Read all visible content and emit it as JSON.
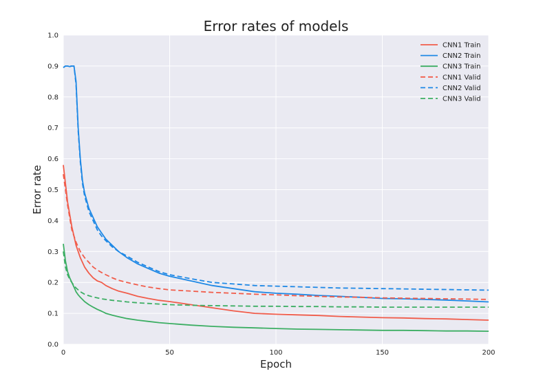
{
  "chart_data": {
    "type": "line",
    "title": "Error rates of models",
    "xlabel": "Epoch",
    "ylabel": "Error rate",
    "xlim": [
      0,
      200
    ],
    "ylim": [
      0.0,
      1.0
    ],
    "xticks": [
      0,
      50,
      100,
      150,
      200
    ],
    "yticks": [
      0.0,
      0.1,
      0.2,
      0.3,
      0.4,
      0.5,
      0.6,
      0.7,
      0.8,
      0.9,
      1.0
    ],
    "xtick_labels": [
      "0",
      "50",
      "100",
      "150",
      "200"
    ],
    "ytick_labels": [
      "0.0",
      "0.1",
      "0.2",
      "0.3",
      "0.4",
      "0.5",
      "0.6",
      "0.7",
      "0.8",
      "0.9",
      "1.0"
    ],
    "grid": true,
    "legend_position": "top-right",
    "background": "#eaeaf2",
    "series": [
      {
        "name": "CNN1 Train",
        "color": "#f15c4a",
        "style": "solid",
        "x": [
          0,
          1,
          2,
          3,
          4,
          5,
          6,
          7,
          8,
          9,
          10,
          12,
          14,
          16,
          18,
          20,
          23,
          26,
          30,
          35,
          40,
          45,
          50,
          60,
          70,
          80,
          90,
          100,
          110,
          120,
          130,
          140,
          150,
          160,
          170,
          180,
          190,
          200
        ],
        "values": [
          0.58,
          0.52,
          0.46,
          0.42,
          0.38,
          0.35,
          0.32,
          0.3,
          0.28,
          0.265,
          0.25,
          0.23,
          0.215,
          0.205,
          0.2,
          0.19,
          0.18,
          0.172,
          0.165,
          0.155,
          0.148,
          0.142,
          0.138,
          0.128,
          0.118,
          0.108,
          0.1,
          0.097,
          0.095,
          0.093,
          0.09,
          0.088,
          0.086,
          0.085,
          0.083,
          0.082,
          0.08,
          0.078
        ]
      },
      {
        "name": "CNN2 Train",
        "color": "#1e88e5",
        "style": "solid",
        "x": [
          0,
          1,
          2,
          3,
          4,
          5,
          6,
          7,
          8,
          9,
          10,
          12,
          14,
          16,
          18,
          20,
          23,
          26,
          30,
          35,
          40,
          45,
          50,
          60,
          70,
          80,
          90,
          100,
          110,
          120,
          130,
          140,
          150,
          160,
          170,
          180,
          190,
          200
        ],
        "values": [
          0.895,
          0.9,
          0.9,
          0.898,
          0.9,
          0.9,
          0.85,
          0.7,
          0.6,
          0.53,
          0.49,
          0.44,
          0.41,
          0.38,
          0.36,
          0.34,
          0.32,
          0.3,
          0.28,
          0.26,
          0.245,
          0.23,
          0.22,
          0.205,
          0.19,
          0.18,
          0.17,
          0.165,
          0.162,
          0.158,
          0.155,
          0.152,
          0.148,
          0.147,
          0.145,
          0.143,
          0.14,
          0.137
        ]
      },
      {
        "name": "CNN3 Train",
        "color": "#3cae63",
        "style": "solid",
        "x": [
          0,
          1,
          2,
          3,
          4,
          5,
          6,
          7,
          8,
          9,
          10,
          12,
          14,
          16,
          18,
          20,
          23,
          26,
          30,
          35,
          40,
          45,
          50,
          60,
          70,
          80,
          90,
          100,
          110,
          120,
          130,
          140,
          150,
          160,
          170,
          180,
          190,
          200
        ],
        "values": [
          0.325,
          0.27,
          0.235,
          0.215,
          0.2,
          0.185,
          0.17,
          0.16,
          0.152,
          0.145,
          0.138,
          0.128,
          0.12,
          0.113,
          0.107,
          0.1,
          0.094,
          0.089,
          0.083,
          0.078,
          0.074,
          0.07,
          0.067,
          0.062,
          0.058,
          0.055,
          0.053,
          0.051,
          0.049,
          0.048,
          0.047,
          0.046,
          0.045,
          0.045,
          0.044,
          0.043,
          0.043,
          0.042
        ]
      },
      {
        "name": "CNN1 Valid",
        "color": "#f15c4a",
        "style": "dashed",
        "x": [
          0,
          1,
          2,
          3,
          4,
          5,
          6,
          7,
          8,
          9,
          10,
          12,
          14,
          16,
          18,
          20,
          23,
          26,
          30,
          35,
          40,
          45,
          50,
          60,
          70,
          80,
          90,
          100,
          110,
          120,
          130,
          140,
          150,
          160,
          170,
          180,
          190,
          200
        ],
        "values": [
          0.55,
          0.5,
          0.45,
          0.41,
          0.37,
          0.35,
          0.33,
          0.315,
          0.3,
          0.29,
          0.28,
          0.265,
          0.25,
          0.24,
          0.232,
          0.225,
          0.215,
          0.207,
          0.2,
          0.192,
          0.185,
          0.18,
          0.176,
          0.172,
          0.168,
          0.165,
          0.162,
          0.16,
          0.157,
          0.155,
          0.153,
          0.152,
          0.15,
          0.149,
          0.148,
          0.147,
          0.146,
          0.145
        ]
      },
      {
        "name": "CNN2 Valid",
        "color": "#1e88e5",
        "style": "dashed",
        "x": [
          0,
          1,
          2,
          3,
          4,
          5,
          6,
          7,
          8,
          9,
          10,
          12,
          14,
          16,
          18,
          20,
          23,
          26,
          30,
          35,
          40,
          45,
          50,
          60,
          70,
          80,
          90,
          100,
          110,
          120,
          130,
          140,
          150,
          160,
          170,
          180,
          190,
          200
        ],
        "values": [
          0.895,
          0.9,
          0.9,
          0.9,
          0.9,
          0.9,
          0.84,
          0.69,
          0.59,
          0.52,
          0.48,
          0.43,
          0.4,
          0.37,
          0.35,
          0.335,
          0.315,
          0.3,
          0.285,
          0.265,
          0.25,
          0.235,
          0.225,
          0.212,
          0.2,
          0.195,
          0.19,
          0.188,
          0.186,
          0.184,
          0.182,
          0.181,
          0.18,
          0.179,
          0.178,
          0.177,
          0.176,
          0.175
        ]
      },
      {
        "name": "CNN3 Valid",
        "color": "#3cae63",
        "style": "dashed",
        "x": [
          0,
          1,
          2,
          3,
          4,
          5,
          6,
          7,
          8,
          9,
          10,
          12,
          14,
          16,
          18,
          20,
          23,
          26,
          30,
          35,
          40,
          45,
          50,
          60,
          70,
          80,
          90,
          100,
          110,
          120,
          130,
          140,
          150,
          160,
          170,
          180,
          190,
          200
        ],
        "values": [
          0.3,
          0.25,
          0.225,
          0.21,
          0.2,
          0.19,
          0.182,
          0.176,
          0.17,
          0.166,
          0.162,
          0.157,
          0.153,
          0.15,
          0.147,
          0.145,
          0.142,
          0.14,
          0.137,
          0.134,
          0.132,
          0.13,
          0.128,
          0.126,
          0.125,
          0.124,
          0.123,
          0.123,
          0.122,
          0.122,
          0.121,
          0.121,
          0.12,
          0.12,
          0.12,
          0.12,
          0.12,
          0.12
        ]
      }
    ]
  }
}
